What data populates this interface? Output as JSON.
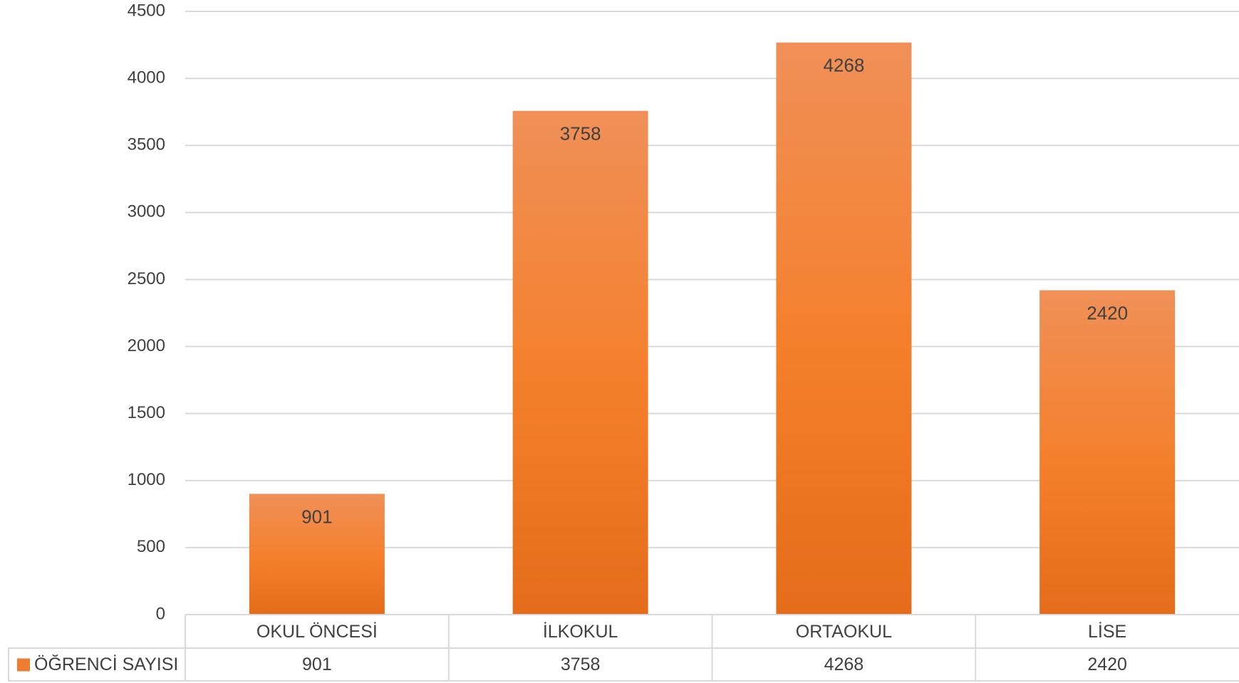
{
  "chart_data": {
    "type": "bar",
    "categories": [
      "OKUL ÖNCESİ",
      "İLKOKUL",
      "ORTAOKUL",
      "LİSE"
    ],
    "series": [
      {
        "name": "ÖĞRENCİ SAYISI",
        "values": [
          901,
          3758,
          4268,
          2420
        ],
        "color": "#ED7D31"
      }
    ],
    "ylim": [
      0,
      4500
    ],
    "yticks": [
      0,
      500,
      1000,
      1500,
      2000,
      2500,
      3000,
      3500,
      4000,
      4500
    ],
    "grid": true,
    "data_table": true,
    "title": "",
    "xlabel": "",
    "ylabel": ""
  },
  "colors": {
    "bar_top": "#F09058",
    "bar_mid": "#F47F2A",
    "bar_bottom": "#E46C1A",
    "grid": "#D9D9D9",
    "text": "#404040"
  }
}
